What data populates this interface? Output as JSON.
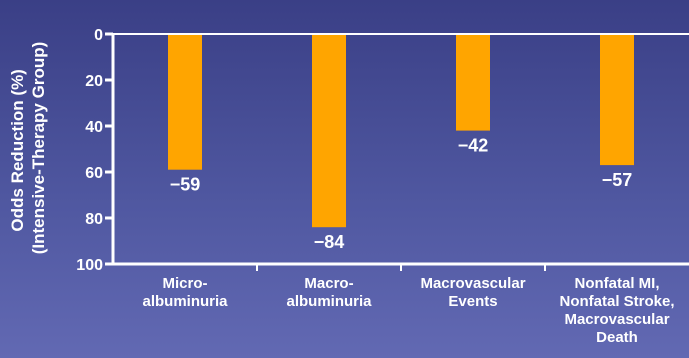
{
  "chart_data": {
    "type": "bar",
    "ylabel_lines": [
      "Odds Reduction (%)",
      "(Intensive-Therapy Group)"
    ],
    "categories": [
      [
        "Micro-",
        "albuminuria"
      ],
      [
        "Macro-",
        "albuminuria"
      ],
      [
        "Macrovascular",
        "Events"
      ],
      [
        "Nonfatal MI,",
        "Nonfatal Stroke,",
        "Macrovascular",
        "Death"
      ]
    ],
    "values": [
      59,
      84,
      42,
      57
    ],
    "value_labels": [
      "−59",
      "−84",
      "−42",
      "−57"
    ],
    "yticks": [
      "0",
      "20",
      "40",
      "60",
      "80",
      "100"
    ],
    "ylim": [
      0,
      100
    ],
    "y_inverted": true,
    "grid": false,
    "colors": {
      "bar": "#FFA500",
      "axis": "#ffffff",
      "text": "#ffffff"
    }
  }
}
